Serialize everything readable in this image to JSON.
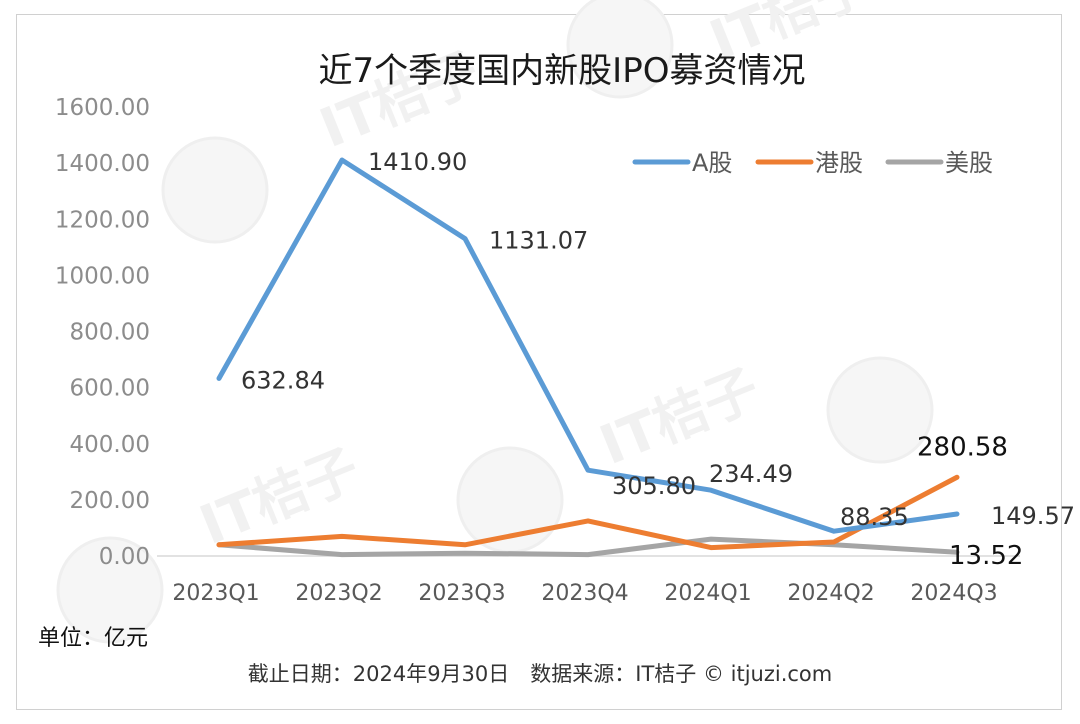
{
  "chart_data": {
    "type": "line",
    "title": "近7个季度国内新股IPO募资情况",
    "categories": [
      "2023Q1",
      "2023Q2",
      "2023Q3",
      "2023Q4",
      "2024Q1",
      "2024Q2",
      "2024Q3"
    ],
    "ylim": [
      0,
      1600
    ],
    "yticks": [
      "0.00",
      "200.00",
      "400.00",
      "600.00",
      "800.00",
      "1000.00",
      "1200.00",
      "1400.00",
      "1600.00"
    ],
    "grid": false,
    "legend_position": "top-right",
    "series": [
      {
        "name": "A股",
        "color": "#5b9bd5",
        "values": [
          632.84,
          1410.9,
          1131.07,
          305.8,
          234.49,
          88.35,
          149.57
        ]
      },
      {
        "name": "港股",
        "color": "#ed7d31",
        "values": [
          40,
          70,
          40,
          125,
          30,
          50,
          280.58
        ]
      },
      {
        "name": "美股",
        "color": "#a5a5a5",
        "values": [
          40,
          5,
          10,
          5,
          60,
          40,
          13.52
        ]
      }
    ],
    "data_labels": [
      {
        "text": "632.84",
        "series": 0,
        "index": 0
      },
      {
        "text": "1410.90",
        "series": 0,
        "index": 1
      },
      {
        "text": "1131.07",
        "series": 0,
        "index": 2
      },
      {
        "text": "305.80",
        "series": 0,
        "index": 3
      },
      {
        "text": "234.49",
        "series": 0,
        "index": 4
      },
      {
        "text": "88.35",
        "series": 0,
        "index": 5
      },
      {
        "text": "149.57",
        "series": 0,
        "index": 6
      },
      {
        "text": "280.58",
        "series": 1,
        "index": 6
      },
      {
        "text": "13.52",
        "series": 2,
        "index": 6
      }
    ],
    "unit_note": "单位：亿元",
    "footer": "截止日期：2024年9月30日　数据来源：IT桔子 © itjuzi.com",
    "watermark": "IT桔子"
  }
}
